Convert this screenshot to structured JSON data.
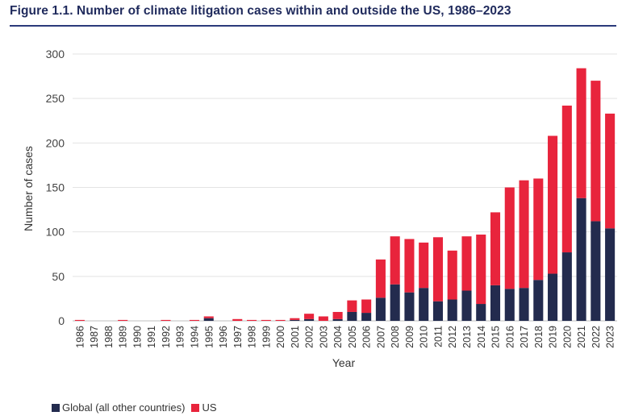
{
  "chart_data": {
    "type": "bar",
    "stacked": true,
    "title": "Figure 1.1. Number of climate litigation cases within and outside the US, 1986–2023",
    "xlabel": "Year",
    "ylabel": "Number of cases",
    "ylim": [
      0,
      300
    ],
    "yticks": [
      "0",
      "50",
      "100",
      "150",
      "200",
      "250",
      "300"
    ],
    "grid": true,
    "legend_position": "bottom-left",
    "categories": [
      "1986",
      "1987",
      "1988",
      "1989",
      "1990",
      "1991",
      "1992",
      "1993",
      "1994",
      "1995",
      "1996",
      "1997",
      "1998",
      "1999",
      "2000",
      "2001",
      "2002",
      "2003",
      "2004",
      "2005",
      "2006",
      "2007",
      "2008",
      "2009",
      "2010",
      "2011",
      "2012",
      "2013",
      "2014",
      "2015",
      "2016",
      "2017",
      "2018",
      "2019",
      "2020",
      "2021",
      "2022",
      "2023"
    ],
    "series": [
      {
        "name": "Global (all other countries)",
        "color": "#232b4e",
        "values": [
          0,
          0,
          0,
          0,
          0,
          0,
          0,
          0,
          0,
          3,
          0,
          0,
          0,
          0,
          0,
          1,
          2,
          0,
          2,
          10,
          9,
          26,
          41,
          32,
          37,
          22,
          24,
          34,
          19,
          40,
          36,
          37,
          46,
          53,
          77,
          138,
          112,
          104
        ]
      },
      {
        "name": "US",
        "color": "#e8243c",
        "values": [
          1,
          0,
          0,
          1,
          0,
          0,
          1,
          0,
          1,
          2,
          0,
          2,
          1,
          1,
          1,
          2,
          6,
          5,
          8,
          13,
          15,
          43,
          54,
          60,
          51,
          72,
          55,
          61,
          78,
          82,
          114,
          121,
          114,
          155,
          165,
          146,
          158,
          129
        ]
      }
    ]
  }
}
